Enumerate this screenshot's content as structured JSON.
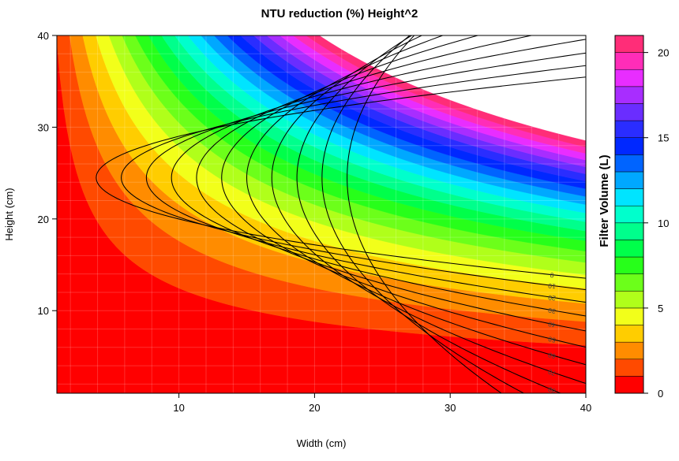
{
  "chart_data": {
    "type": "heatmap",
    "title": "NTU reduction (%) Height^2",
    "xlabel": "Width (cm)",
    "ylabel": "Height (cm)",
    "colorbar_label": "Filter Volume (L)",
    "xlim": [
      1,
      40
    ],
    "ylim": [
      1,
      40
    ],
    "x_ticks": [
      10,
      20,
      30,
      40
    ],
    "y_ticks": [
      10,
      20,
      30,
      40
    ],
    "fill": {
      "variable": "Filter Volume (L)",
      "formula": "Width * Height^2 / 1550",
      "levels": [
        0,
        1,
        2,
        3,
        4,
        5,
        6,
        7,
        8,
        9,
        10,
        11,
        12,
        13,
        14,
        15,
        16,
        17,
        18,
        19,
        20,
        21
      ],
      "colorbar_ticks": [
        0,
        5,
        10,
        15,
        20
      ],
      "colors": [
        "#ff0000",
        "#ff4a00",
        "#ff8c00",
        "#ffcd00",
        "#f2ff1a",
        "#b0ff1a",
        "#6cff1a",
        "#27ff1a",
        "#00ff4a",
        "#00ff8c",
        "#00ffcc",
        "#00e4ff",
        "#00a8ff",
        "#0064ff",
        "#0028ff",
        "#2a2dff",
        "#6a2dff",
        "#a82dff",
        "#e82dff",
        "#ff2db8",
        "#ff2d78"
      ]
    },
    "contours": {
      "variable": "NTU reduction (%)",
      "levels": [
        0,
        10,
        20,
        30,
        40,
        50,
        60,
        70,
        80,
        90,
        100
      ],
      "line_color": "#000000"
    },
    "grid": true,
    "legend_position": "right"
  }
}
